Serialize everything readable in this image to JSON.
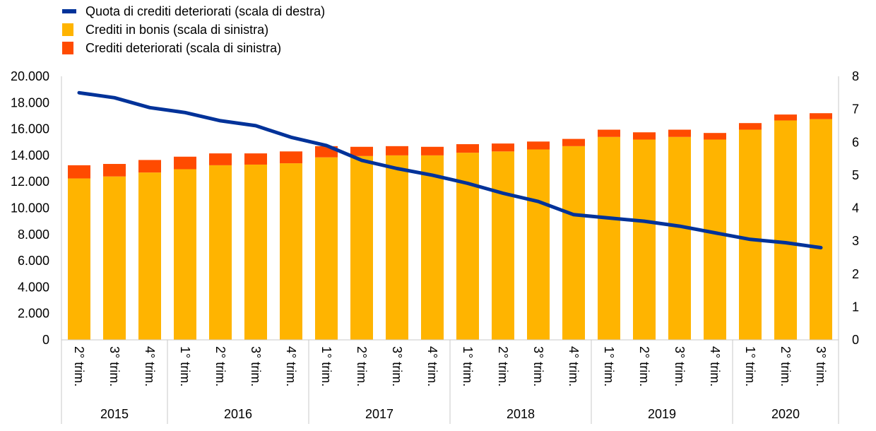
{
  "chart_data": {
    "type": "bar",
    "legend_placement": "top-left",
    "legend": [
      {
        "label": "Quota di crediti deteriorati (scala di destra)",
        "kind": "line",
        "color": "#003299"
      },
      {
        "label": "Crediti in bonis (scala di sinistra)",
        "kind": "bar",
        "color": "#FFB400"
      },
      {
        "label": "Crediti deteriorati (scala di sinistra)",
        "kind": "bar",
        "color": "#FF4B00"
      }
    ],
    "categories": [
      "2° trim.",
      "3° trim.",
      "4° trim.",
      "1° trim.",
      "2° trim.",
      "3° trim.",
      "4° trim.",
      "1° trim.",
      "2° trim.",
      "3° trim.",
      "4° trim.",
      "1° trim.",
      "2° trim.",
      "3° trim.",
      "4° trim.",
      "1° trim.",
      "2° trim.",
      "3° trim.",
      "4° trim.",
      "1° trim.",
      "2° trim.",
      "3° trim."
    ],
    "years": [
      {
        "label": "2015",
        "count": 3
      },
      {
        "label": "2016",
        "count": 4
      },
      {
        "label": "2017",
        "count": 4
      },
      {
        "label": "2018",
        "count": 4
      },
      {
        "label": "2019",
        "count": 4
      },
      {
        "label": "2020",
        "count": 3
      }
    ],
    "series": [
      {
        "name": "Crediti in bonis (scala di sinistra)",
        "axis": "left",
        "type": "bar",
        "stack": 0,
        "values": [
          12250,
          12400,
          12700,
          12950,
          13250,
          13300,
          13400,
          13850,
          13950,
          14000,
          14000,
          14200,
          14300,
          14450,
          14700,
          15400,
          15200,
          15400,
          15200,
          15950,
          16650,
          16750
        ]
      },
      {
        "name": "Crediti deteriorati (scala di sinistra)",
        "axis": "left",
        "type": "bar",
        "stack": 1,
        "values": [
          1000,
          950,
          950,
          950,
          900,
          850,
          900,
          850,
          700,
          700,
          650,
          650,
          600,
          600,
          550,
          550,
          550,
          550,
          500,
          500,
          450,
          450
        ]
      },
      {
        "name": "Quota di crediti deteriorati (scala di destra)",
        "axis": "right",
        "type": "line",
        "values": [
          7.5,
          7.35,
          7.05,
          6.9,
          6.65,
          6.5,
          6.15,
          5.9,
          5.45,
          5.2,
          5.0,
          4.75,
          4.45,
          4.2,
          3.8,
          3.7,
          3.6,
          3.45,
          3.25,
          3.05,
          2.95,
          2.8
        ]
      }
    ],
    "y_left": {
      "min": 0,
      "max": 20000,
      "ticks": [
        "0",
        "2.000",
        "4.000",
        "6.000",
        "8.000",
        "10.000",
        "12.000",
        "14.000",
        "16.000",
        "18.000",
        "20.000"
      ]
    },
    "y_right": {
      "min": 0,
      "max": 8,
      "ticks": [
        "0",
        "1",
        "2",
        "3",
        "4",
        "5",
        "6",
        "7",
        "8"
      ]
    },
    "grid": false
  }
}
